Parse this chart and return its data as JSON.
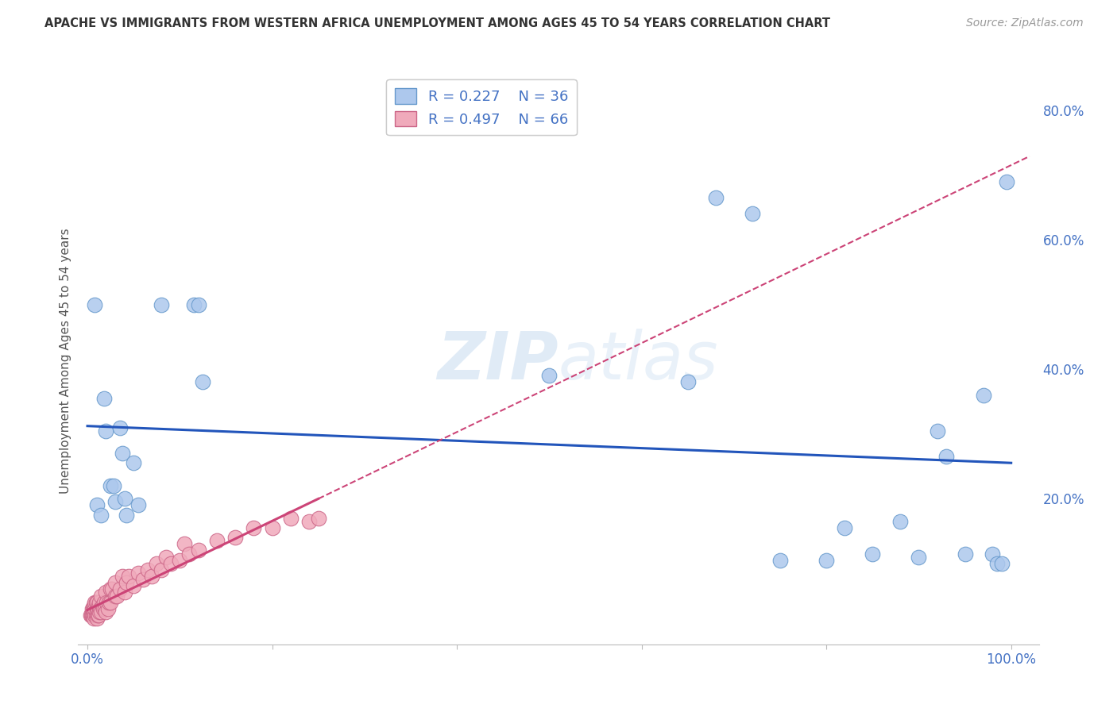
{
  "title": "APACHE VS IMMIGRANTS FROM WESTERN AFRICA UNEMPLOYMENT AMONG AGES 45 TO 54 YEARS CORRELATION CHART",
  "source": "Source: ZipAtlas.com",
  "ylabel": "Unemployment Among Ages 45 to 54 years",
  "ytick_labels": [
    "20.0%",
    "40.0%",
    "60.0%",
    "80.0%"
  ],
  "ytick_values": [
    0.2,
    0.4,
    0.6,
    0.8
  ],
  "watermark": "ZIPatlas",
  "legend_R1": "R = 0.227",
  "legend_N1": "N = 36",
  "legend_R2": "R = 0.497",
  "legend_N2": "N = 66",
  "apache_color": "#adc8ed",
  "apache_edge_color": "#6699cc",
  "wa_color": "#f0aabb",
  "wa_edge_color": "#cc6688",
  "trend_apache_color": "#2255bb",
  "trend_wa_color": "#cc4477",
  "background_color": "#ffffff",
  "apache_x": [
    0.008,
    0.01,
    0.015,
    0.018,
    0.02,
    0.025,
    0.028,
    0.03,
    0.035,
    0.038,
    0.04,
    0.042,
    0.05,
    0.055,
    0.08,
    0.115,
    0.12,
    0.125,
    0.5,
    0.65,
    0.68,
    0.72,
    0.75,
    0.8,
    0.82,
    0.85,
    0.88,
    0.9,
    0.92,
    0.93,
    0.95,
    0.97,
    0.98,
    0.985,
    0.99,
    0.995
  ],
  "apache_y": [
    0.5,
    0.19,
    0.175,
    0.355,
    0.305,
    0.22,
    0.22,
    0.195,
    0.31,
    0.27,
    0.2,
    0.175,
    0.255,
    0.19,
    0.5,
    0.5,
    0.5,
    0.38,
    0.39,
    0.38,
    0.665,
    0.64,
    0.105,
    0.105,
    0.155,
    0.115,
    0.165,
    0.11,
    0.305,
    0.265,
    0.115,
    0.36,
    0.115,
    0.1,
    0.1,
    0.69
  ],
  "wa_x": [
    0.003,
    0.004,
    0.005,
    0.005,
    0.006,
    0.006,
    0.007,
    0.007,
    0.007,
    0.008,
    0.008,
    0.008,
    0.009,
    0.009,
    0.01,
    0.01,
    0.01,
    0.011,
    0.011,
    0.012,
    0.012,
    0.013,
    0.013,
    0.014,
    0.015,
    0.015,
    0.016,
    0.017,
    0.018,
    0.019,
    0.02,
    0.02,
    0.021,
    0.022,
    0.023,
    0.025,
    0.025,
    0.027,
    0.03,
    0.03,
    0.032,
    0.035,
    0.038,
    0.04,
    0.042,
    0.045,
    0.05,
    0.055,
    0.06,
    0.065,
    0.07,
    0.075,
    0.08,
    0.085,
    0.09,
    0.1,
    0.105,
    0.11,
    0.12,
    0.14,
    0.16,
    0.18,
    0.2,
    0.22,
    0.24,
    0.25
  ],
  "wa_y": [
    0.02,
    0.02,
    0.02,
    0.03,
    0.02,
    0.03,
    0.015,
    0.025,
    0.035,
    0.02,
    0.03,
    0.04,
    0.02,
    0.04,
    0.015,
    0.025,
    0.04,
    0.02,
    0.03,
    0.02,
    0.035,
    0.025,
    0.04,
    0.03,
    0.025,
    0.05,
    0.035,
    0.03,
    0.04,
    0.03,
    0.025,
    0.055,
    0.04,
    0.03,
    0.04,
    0.04,
    0.06,
    0.06,
    0.05,
    0.07,
    0.05,
    0.06,
    0.08,
    0.055,
    0.07,
    0.08,
    0.065,
    0.085,
    0.075,
    0.09,
    0.08,
    0.1,
    0.09,
    0.11,
    0.1,
    0.105,
    0.13,
    0.115,
    0.12,
    0.135,
    0.14,
    0.155,
    0.155,
    0.17,
    0.165,
    0.17
  ],
  "xlim": [
    -0.01,
    1.03
  ],
  "ylim": [
    -0.025,
    0.85
  ],
  "trend_apache_x0": 0.0,
  "trend_apache_x1": 1.0,
  "trend_wa_solid_x0": 0.0,
  "trend_wa_solid_x1": 0.25,
  "trend_wa_dash_x0": 0.25,
  "trend_wa_dash_x1": 1.02
}
